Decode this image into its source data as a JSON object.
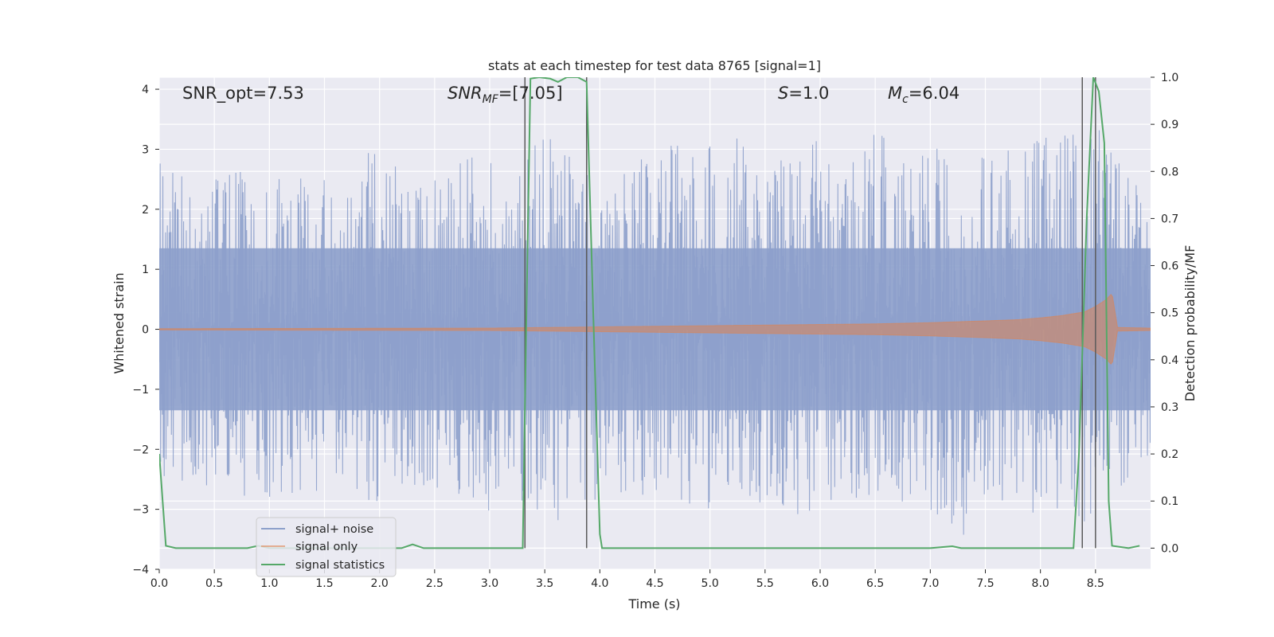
{
  "chart_data": {
    "type": "line",
    "title": "stats at each timestep for test data 8765 [signal=1]",
    "xlabel": "Time (s)",
    "ylabel": "Whitened strain",
    "y2label": "Detection probability/MF",
    "xlim": [
      0.0,
      9.0
    ],
    "ylim": [
      -4.0,
      4.2
    ],
    "y2lim": [
      -0.045,
      1.0
    ],
    "xticks": [
      "0.0",
      "0.5",
      "1.0",
      "1.5",
      "2.0",
      "2.5",
      "3.0",
      "3.5",
      "4.0",
      "4.5",
      "5.0",
      "5.5",
      "6.0",
      "6.5",
      "7.0",
      "7.5",
      "8.0",
      "8.5"
    ],
    "xtick_values": [
      0.0,
      0.5,
      1.0,
      1.5,
      2.0,
      2.5,
      3.0,
      3.5,
      4.0,
      4.5,
      5.0,
      5.5,
      6.0,
      6.5,
      7.0,
      7.5,
      8.0,
      8.5
    ],
    "yticks": [
      "−4",
      "−3",
      "−2",
      "−1",
      "0",
      "1",
      "2",
      "3",
      "4"
    ],
    "ytick_values": [
      -4,
      -3,
      -2,
      -1,
      0,
      1,
      2,
      3,
      4
    ],
    "y2ticks": [
      "0.0",
      "0.1",
      "0.2",
      "0.3",
      "0.4",
      "0.5",
      "0.6",
      "0.7",
      "0.8",
      "0.9",
      "1.0"
    ],
    "y2tick_values": [
      0.0,
      0.1,
      0.2,
      0.3,
      0.4,
      0.5,
      0.6,
      0.7,
      0.8,
      0.9,
      1.0
    ],
    "grid": true,
    "legend_position": "lower-left",
    "annotations": {
      "snr_opt": "SNR_opt=7.53",
      "snr_mf_main": "SNR",
      "snr_mf_sub": "MF",
      "snr_mf_value": "=[7.05]",
      "s_main": "S",
      "s_value": "=1.0",
      "mc_main": "M",
      "mc_sub": "c",
      "mc_value": "=6.04"
    },
    "noise_envelope": {
      "x": [
        0.0,
        0.25,
        0.5,
        0.75,
        1.0,
        1.25,
        1.5,
        1.75,
        2.0,
        2.25,
        2.5,
        2.75,
        3.0,
        3.25,
        3.5,
        3.75,
        4.0,
        4.25,
        4.5,
        4.75,
        5.0,
        5.25,
        5.5,
        5.75,
        6.0,
        6.25,
        6.5,
        6.75,
        7.0,
        7.25,
        7.5,
        7.75,
        8.0,
        8.25,
        8.5,
        8.75,
        9.0
      ],
      "upper": [
        3.3,
        2.4,
        2.5,
        2.8,
        2.6,
        2.5,
        2.7,
        2.6,
        3.2,
        2.4,
        2.6,
        2.9,
        2.8,
        2.6,
        3.6,
        2.9,
        2.5,
        2.8,
        3.0,
        3.2,
        3.1,
        3.3,
        2.8,
        2.9,
        3.2,
        2.6,
        3.6,
        2.9,
        3.2,
        2.5,
        3.0,
        3.0,
        3.2,
        3.4,
        3.4,
        2.8,
        2.4
      ],
      "lower": [
        -2.4,
        -2.7,
        -2.6,
        -2.8,
        -2.9,
        -2.7,
        -2.9,
        -2.8,
        -3.1,
        -2.7,
        -2.9,
        -2.8,
        -3.1,
        -2.8,
        -3.4,
        -3.1,
        -2.8,
        -2.8,
        -2.9,
        -3.0,
        -3.1,
        -3.0,
        -2.9,
        -3.2,
        -3.1,
        -2.8,
        -3.0,
        -2.9,
        -3.0,
        -3.6,
        -2.9,
        -3.0,
        -3.1,
        -3.5,
        -3.0,
        -2.8,
        -2.6
      ]
    },
    "series": [
      {
        "name": "signal+ noise",
        "color": "#8da0cb",
        "axis": "left",
        "style": "dense-noise"
      },
      {
        "name": "signal only",
        "color": "#dd8452",
        "axis": "left",
        "x": [
          0.0,
          3.0,
          3.5,
          4.0,
          4.5,
          5.0,
          5.5,
          6.0,
          6.5,
          7.0,
          7.5,
          7.8,
          8.0,
          8.2,
          8.4,
          8.5,
          8.6,
          8.65,
          8.7,
          9.0
        ],
        "amplitude": [
          0.01,
          0.02,
          0.03,
          0.04,
          0.05,
          0.06,
          0.07,
          0.08,
          0.09,
          0.11,
          0.14,
          0.16,
          0.19,
          0.23,
          0.29,
          0.38,
          0.5,
          0.6,
          0.03,
          0.02
        ]
      },
      {
        "name": "signal statistics",
        "color": "#55a868",
        "axis": "right",
        "x": [
          0.0,
          0.06,
          0.15,
          0.3,
          0.8,
          0.9,
          1.0,
          2.2,
          2.3,
          2.4,
          3.3,
          3.33,
          3.37,
          3.45,
          3.55,
          3.62,
          3.7,
          3.8,
          3.88,
          3.94,
          4.0,
          4.02,
          4.05,
          7.0,
          7.2,
          7.28,
          7.35,
          8.3,
          8.35,
          8.42,
          8.48,
          8.53,
          8.58,
          8.62,
          8.65,
          8.8,
          8.9
        ],
        "values": [
          0.2,
          0.005,
          0.0,
          0.0,
          0.0,
          0.005,
          0.0,
          0.0,
          0.008,
          0.0,
          0.0,
          0.45,
          0.997,
          1.0,
          0.997,
          0.99,
          1.0,
          1.0,
          0.99,
          0.5,
          0.03,
          0.0,
          0.0,
          0.0,
          0.004,
          0.0,
          0.0,
          0.0,
          0.2,
          0.7,
          1.0,
          0.97,
          0.86,
          0.1,
          0.005,
          0.0,
          0.005
        ]
      }
    ],
    "vlines": [
      3.32,
      3.88,
      8.38,
      8.5
    ],
    "vline_color": "#5a5a5a"
  },
  "colors": {
    "axes_bg": "#eaeaf2",
    "grid": "#ffffff",
    "text": "#262626"
  }
}
